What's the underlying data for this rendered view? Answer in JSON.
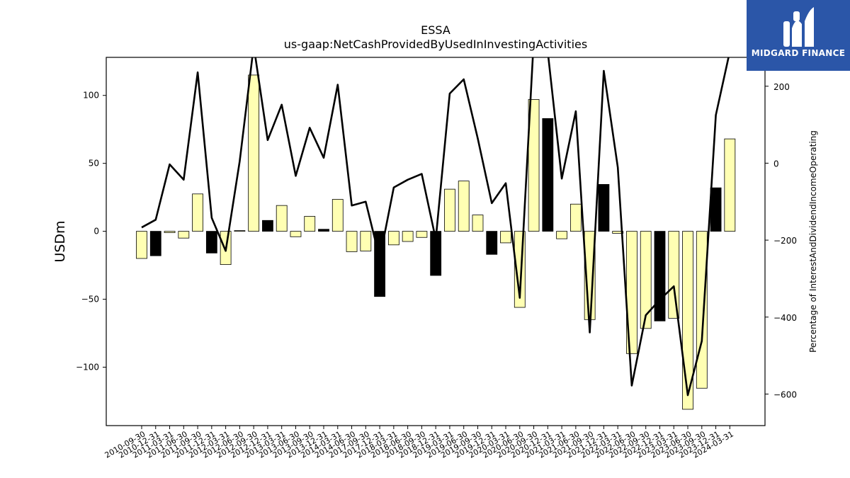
{
  "chart_data": {
    "type": "bar",
    "title": "ESSA",
    "subtitle": "us-gaap:NetCashProvidedByUsedInInvestingActivities",
    "ylabel": "USDm",
    "y2label": "Percentage of InterestAndDividendIncomeOperating",
    "ylim": [
      -143,
      128
    ],
    "y2lim": [
      -682,
      275
    ],
    "yticks": [
      -100,
      -50,
      0,
      50,
      100
    ],
    "y2ticks": [
      -600,
      -400,
      -200,
      0,
      200
    ],
    "categories": [
      "2010-09-30",
      "2010-12-31",
      "2011-03-31",
      "2011-06-30",
      "2011-09-30",
      "2011-12-31",
      "2012-03-31",
      "2012-06-30",
      "2012-09-30",
      "2012-12-31",
      "2013-03-31",
      "2013-06-30",
      "2013-09-30",
      "2013-12-31",
      "2014-03-31",
      "2014-06-30",
      "2017-09-30",
      "2017-12-31",
      "2018-03-31",
      "2018-06-30",
      "2018-09-30",
      "2018-12-31",
      "2019-03-31",
      "2019-06-30",
      "2019-09-30",
      "2019-12-31",
      "2020-03-31",
      "2020-06-30",
      "2020-09-30",
      "2020-12-31",
      "2021-03-31",
      "2021-06-30",
      "2021-09-30",
      "2021-12-31",
      "2022-03-31",
      "2022-06-30",
      "2022-09-30",
      "2022-12-31",
      "2023-03-31",
      "2023-06-30",
      "2023-09-30",
      "2023-12-31",
      "2024-03-31"
    ],
    "series": [
      {
        "name": "",
        "type": "bar",
        "values": [
          -20,
          -18,
          -1,
          -5,
          27.5,
          -16,
          -24.5,
          0.5,
          115,
          8,
          19,
          -4,
          11,
          1.5,
          23.5,
          -15,
          -14.5,
          -48,
          -10,
          -7.5,
          -4.5,
          -32.5,
          31,
          37,
          12,
          -17,
          -8.5,
          -56,
          97,
          83,
          -5.5,
          20,
          -65,
          34.5,
          -1.5,
          -90,
          -71.5,
          -66,
          -64,
          -131,
          -115.5,
          32,
          68
        ],
        "highlight": [
          false,
          true,
          false,
          false,
          false,
          true,
          false,
          false,
          false,
          true,
          false,
          false,
          false,
          true,
          false,
          false,
          false,
          true,
          false,
          false,
          false,
          true,
          false,
          false,
          false,
          true,
          false,
          false,
          false,
          true,
          false,
          false,
          false,
          true,
          false,
          false,
          false,
          true,
          false,
          false,
          false,
          true,
          false
        ]
      },
      {
        "name": "",
        "type": "line",
        "values": [
          -167,
          -147,
          -3,
          -43,
          236,
          -142,
          -228,
          5,
          305,
          60,
          152,
          -33,
          92,
          14,
          204,
          -110,
          -100,
          -248,
          -63,
          -43,
          -28,
          -198,
          181,
          218,
          64,
          -104,
          -52,
          -350,
          323,
          290,
          -40,
          135,
          -440,
          240,
          -11,
          -578,
          -395,
          -355,
          -320,
          -603,
          -462,
          125,
          290
        ]
      }
    ],
    "colors": {
      "bar_pale": "#ffffb3",
      "bar_dark": "#000000",
      "line": "#000000",
      "frame": "#000000"
    },
    "grid": false,
    "legend": "none"
  },
  "logo": {
    "text": "MIDGARD FINANCE",
    "background": "#2b56a8"
  }
}
